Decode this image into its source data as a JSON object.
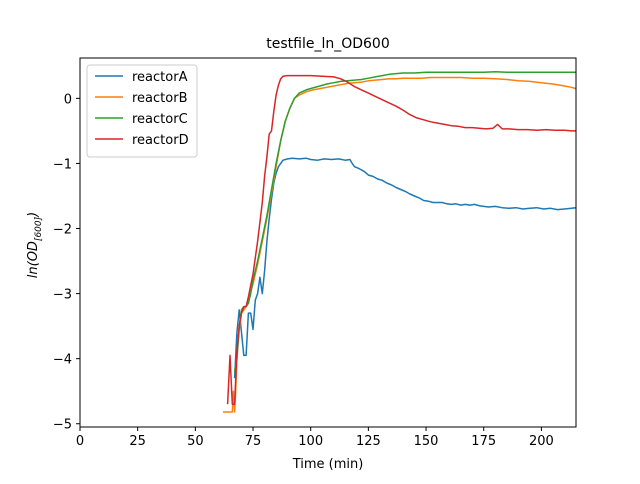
{
  "chart_data": {
    "type": "line",
    "title": "testfile_ln_OD600",
    "xlabel": "Time (min)",
    "ylabel": {
      "main": "ln(OD",
      "sub": "[600]",
      "end": ")"
    },
    "xlim": [
      0,
      215
    ],
    "ylim": [
      -5.05,
      0.62
    ],
    "xticks": [
      0,
      25,
      50,
      75,
      100,
      125,
      150,
      175,
      200
    ],
    "yticks": [
      -5,
      -4,
      -3,
      -2,
      -1,
      0
    ],
    "grid": false,
    "legend": {
      "position": "top-left"
    },
    "series": [
      {
        "name": "reactorA",
        "color": "#1f77b4",
        "points": [
          [
            67,
            -4.3
          ],
          [
            68,
            -3.6
          ],
          [
            69,
            -3.25
          ],
          [
            70,
            -3.6
          ],
          [
            71,
            -3.95
          ],
          [
            72,
            -3.95
          ],
          [
            73,
            -3.3
          ],
          [
            74,
            -3.3
          ],
          [
            75,
            -3.55
          ],
          [
            76,
            -3.1
          ],
          [
            77,
            -3.0
          ],
          [
            78,
            -2.75
          ],
          [
            79,
            -3.0
          ],
          [
            80,
            -2.65
          ],
          [
            81,
            -2.2
          ],
          [
            82,
            -1.85
          ],
          [
            83,
            -1.55
          ],
          [
            84,
            -1.3
          ],
          [
            85,
            -1.15
          ],
          [
            86,
            -1.05
          ],
          [
            88,
            -0.95
          ],
          [
            90,
            -0.93
          ],
          [
            92,
            -0.92
          ],
          [
            95,
            -0.93
          ],
          [
            98,
            -0.92
          ],
          [
            100,
            -0.94
          ],
          [
            103,
            -0.95
          ],
          [
            106,
            -0.93
          ],
          [
            109,
            -0.94
          ],
          [
            112,
            -0.93
          ],
          [
            115,
            -0.95
          ],
          [
            117,
            -0.94
          ],
          [
            118,
            -1.0
          ],
          [
            119,
            -1.05
          ],
          [
            121,
            -1.08
          ],
          [
            123,
            -1.12
          ],
          [
            125,
            -1.18
          ],
          [
            127,
            -1.2
          ],
          [
            129,
            -1.24
          ],
          [
            131,
            -1.26
          ],
          [
            133,
            -1.3
          ],
          [
            135,
            -1.33
          ],
          [
            137,
            -1.37
          ],
          [
            139,
            -1.4
          ],
          [
            141,
            -1.43
          ],
          [
            143,
            -1.47
          ],
          [
            145,
            -1.5
          ],
          [
            147,
            -1.53
          ],
          [
            149,
            -1.57
          ],
          [
            151,
            -1.58
          ],
          [
            153,
            -1.6
          ],
          [
            155,
            -1.6
          ],
          [
            157,
            -1.6
          ],
          [
            159,
            -1.62
          ],
          [
            161,
            -1.63
          ],
          [
            163,
            -1.62
          ],
          [
            165,
            -1.64
          ],
          [
            167,
            -1.63
          ],
          [
            169,
            -1.64
          ],
          [
            171,
            -1.63
          ],
          [
            173,
            -1.65
          ],
          [
            175,
            -1.66
          ],
          [
            177,
            -1.67
          ],
          [
            180,
            -1.66
          ],
          [
            183,
            -1.68
          ],
          [
            186,
            -1.69
          ],
          [
            189,
            -1.68
          ],
          [
            192,
            -1.7
          ],
          [
            195,
            -1.69
          ],
          [
            198,
            -1.68
          ],
          [
            201,
            -1.7
          ],
          [
            204,
            -1.69
          ],
          [
            207,
            -1.71
          ],
          [
            210,
            -1.7
          ],
          [
            213,
            -1.69
          ],
          [
            215,
            -1.68
          ]
        ]
      },
      {
        "name": "reactorB",
        "color": "#ff7f0e",
        "points": [
          [
            62,
            -4.82
          ],
          [
            66,
            -4.82
          ],
          [
            66.5,
            -4.5
          ],
          [
            67,
            -4.82
          ],
          [
            67.5,
            -4.5
          ],
          [
            68,
            -4.0
          ],
          [
            69,
            -3.55
          ],
          [
            70,
            -3.3
          ],
          [
            71,
            -3.25
          ],
          [
            72,
            -3.2
          ],
          [
            73,
            -3.1
          ],
          [
            75,
            -2.85
          ],
          [
            77,
            -2.55
          ],
          [
            79,
            -2.2
          ],
          [
            81,
            -1.85
          ],
          [
            83,
            -1.45
          ],
          [
            85,
            -1.05
          ],
          [
            87,
            -0.65
          ],
          [
            89,
            -0.35
          ],
          [
            91,
            -0.15
          ],
          [
            93,
            0.0
          ],
          [
            95,
            0.05
          ],
          [
            98,
            0.1
          ],
          [
            101,
            0.13
          ],
          [
            104,
            0.15
          ],
          [
            107,
            0.17
          ],
          [
            110,
            0.19
          ],
          [
            113,
            0.21
          ],
          [
            116,
            0.23
          ],
          [
            119,
            0.24
          ],
          [
            122,
            0.25
          ],
          [
            125,
            0.27
          ],
          [
            128,
            0.28
          ],
          [
            131,
            0.29
          ],
          [
            134,
            0.3
          ],
          [
            137,
            0.3
          ],
          [
            140,
            0.31
          ],
          [
            144,
            0.31
          ],
          [
            148,
            0.31
          ],
          [
            152,
            0.32
          ],
          [
            156,
            0.32
          ],
          [
            160,
            0.32
          ],
          [
            165,
            0.32
          ],
          [
            170,
            0.31
          ],
          [
            175,
            0.31
          ],
          [
            180,
            0.3
          ],
          [
            185,
            0.29
          ],
          [
            190,
            0.27
          ],
          [
            195,
            0.26
          ],
          [
            200,
            0.24
          ],
          [
            205,
            0.22
          ],
          [
            210,
            0.19
          ],
          [
            213,
            0.17
          ],
          [
            215,
            0.15
          ]
        ]
      },
      {
        "name": "reactorC",
        "color": "#2ca02c",
        "points": [
          [
            67,
            -4.2
          ],
          [
            68,
            -4.0
          ],
          [
            69,
            -3.5
          ],
          [
            70,
            -3.25
          ],
          [
            71,
            -3.2
          ],
          [
            72,
            -3.2
          ],
          [
            73,
            -3.15
          ],
          [
            74,
            -3.0
          ],
          [
            75,
            -2.8
          ],
          [
            77,
            -2.5
          ],
          [
            79,
            -2.15
          ],
          [
            81,
            -1.8
          ],
          [
            83,
            -1.4
          ],
          [
            85,
            -1.0
          ],
          [
            87,
            -0.65
          ],
          [
            89,
            -0.35
          ],
          [
            91,
            -0.15
          ],
          [
            93,
            0.0
          ],
          [
            95,
            0.08
          ],
          [
            98,
            0.13
          ],
          [
            101,
            0.16
          ],
          [
            104,
            0.19
          ],
          [
            107,
            0.22
          ],
          [
            110,
            0.24
          ],
          [
            113,
            0.26
          ],
          [
            116,
            0.27
          ],
          [
            119,
            0.28
          ],
          [
            122,
            0.29
          ],
          [
            125,
            0.31
          ],
          [
            128,
            0.33
          ],
          [
            131,
            0.35
          ],
          [
            134,
            0.37
          ],
          [
            137,
            0.38
          ],
          [
            140,
            0.39
          ],
          [
            145,
            0.39
          ],
          [
            150,
            0.4
          ],
          [
            155,
            0.4
          ],
          [
            160,
            0.4
          ],
          [
            165,
            0.4
          ],
          [
            170,
            0.4
          ],
          [
            175,
            0.4
          ],
          [
            180,
            0.41
          ],
          [
            185,
            0.4
          ],
          [
            190,
            0.4
          ],
          [
            195,
            0.4
          ],
          [
            200,
            0.4
          ],
          [
            205,
            0.4
          ],
          [
            210,
            0.4
          ],
          [
            215,
            0.4
          ]
        ]
      },
      {
        "name": "reactorD",
        "color": "#d62728",
        "points": [
          [
            64,
            -4.7
          ],
          [
            65,
            -3.95
          ],
          [
            66,
            -4.7
          ],
          [
            67,
            -4.7
          ],
          [
            68,
            -3.9
          ],
          [
            69,
            -3.5
          ],
          [
            70,
            -3.3
          ],
          [
            71,
            -3.2
          ],
          [
            72,
            -3.2
          ],
          [
            73,
            -3.05
          ],
          [
            75,
            -2.7
          ],
          [
            77,
            -2.2
          ],
          [
            79,
            -1.6
          ],
          [
            80,
            -1.2
          ],
          [
            81,
            -0.9
          ],
          [
            82,
            -0.55
          ],
          [
            83,
            -0.5
          ],
          [
            84,
            -0.2
          ],
          [
            85,
            0.05
          ],
          [
            86,
            0.2
          ],
          [
            87,
            0.3
          ],
          [
            88,
            0.34
          ],
          [
            90,
            0.35
          ],
          [
            95,
            0.35
          ],
          [
            100,
            0.35
          ],
          [
            105,
            0.34
          ],
          [
            110,
            0.33
          ],
          [
            113,
            0.3
          ],
          [
            116,
            0.25
          ],
          [
            119,
            0.18
          ],
          [
            122,
            0.13
          ],
          [
            125,
            0.08
          ],
          [
            128,
            0.03
          ],
          [
            131,
            -0.02
          ],
          [
            134,
            -0.07
          ],
          [
            137,
            -0.12
          ],
          [
            140,
            -0.18
          ],
          [
            143,
            -0.25
          ],
          [
            146,
            -0.3
          ],
          [
            149,
            -0.33
          ],
          [
            152,
            -0.36
          ],
          [
            155,
            -0.38
          ],
          [
            158,
            -0.4
          ],
          [
            161,
            -0.42
          ],
          [
            164,
            -0.43
          ],
          [
            167,
            -0.45
          ],
          [
            170,
            -0.45
          ],
          [
            173,
            -0.46
          ],
          [
            176,
            -0.47
          ],
          [
            179,
            -0.46
          ],
          [
            181,
            -0.4
          ],
          [
            183,
            -0.47
          ],
          [
            186,
            -0.47
          ],
          [
            190,
            -0.48
          ],
          [
            194,
            -0.48
          ],
          [
            198,
            -0.49
          ],
          [
            202,
            -0.48
          ],
          [
            206,
            -0.49
          ],
          [
            210,
            -0.49
          ],
          [
            213,
            -0.5
          ],
          [
            215,
            -0.5
          ]
        ]
      }
    ]
  }
}
